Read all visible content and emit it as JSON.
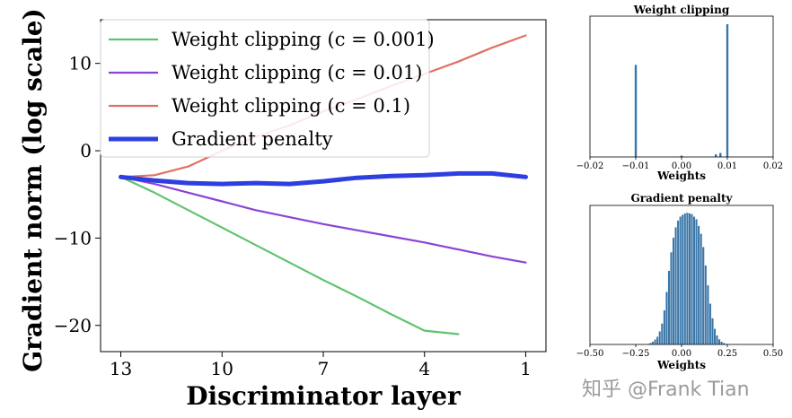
{
  "chart_data": [
    {
      "type": "line",
      "xlabel": "Discriminator layer",
      "ylabel": "Gradient norm (log scale)",
      "x_ticks": [
        13,
        10,
        7,
        4,
        1
      ],
      "x_tick_labels": [
        "13",
        "10",
        "7",
        "4",
        "1"
      ],
      "y_ticks": [
        10,
        0,
        -10,
        -20
      ],
      "y_tick_labels": [
        "10",
        "0",
        "−10",
        "−20"
      ],
      "xlim": [
        13.6,
        0.4
      ],
      "ylim": [
        -23,
        15
      ],
      "x_reversed": true,
      "grid": false,
      "legend_position": "top-left",
      "series": [
        {
          "name": "Weight clipping (c = 0.001)",
          "color": "#5fc36d",
          "x": [
            13,
            12,
            11,
            10,
            9,
            8,
            7,
            6,
            5,
            4,
            3
          ],
          "y": [
            -3,
            -4.8,
            -6.8,
            -8.8,
            -10.8,
            -12.8,
            -14.8,
            -16.7,
            -18.7,
            -20.6,
            -21
          ]
        },
        {
          "name": "Weight clipping (c = 0.01)",
          "color": "#8b43d6",
          "x": [
            13,
            12,
            11,
            10,
            9,
            8,
            7,
            6,
            5,
            4,
            3,
            2,
            1
          ],
          "y": [
            -3,
            -3.8,
            -4.8,
            -5.8,
            -6.8,
            -7.6,
            -8.4,
            -9.1,
            -9.8,
            -10.5,
            -11.3,
            -12.1,
            -12.8
          ]
        },
        {
          "name": "Weight clipping (c = 0.1)",
          "color": "#e07163",
          "x": [
            13,
            12,
            11,
            10,
            9,
            8,
            7,
            6,
            5,
            4,
            3,
            2,
            1
          ],
          "y": [
            -3,
            -2.8,
            -1.8,
            0,
            1.6,
            2.9,
            4.5,
            5.9,
            7.4,
            8.8,
            10.2,
            11.8,
            13.2
          ]
        },
        {
          "name": "Gradient penalty",
          "color": "#2e3fe0",
          "x": [
            13,
            12,
            11,
            10,
            9,
            8,
            7,
            6,
            5,
            4,
            3,
            2,
            1
          ],
          "y": [
            -3,
            -3.4,
            -3.7,
            -3.8,
            -3.7,
            -3.8,
            -3.5,
            -3.1,
            -2.9,
            -2.8,
            -2.6,
            -2.6,
            -3.0
          ]
        }
      ]
    },
    {
      "type": "bar",
      "title": "Weight clipping",
      "xlabel": "Weights",
      "xlim": [
        -0.02,
        0.02
      ],
      "x_ticks": [
        -0.02,
        -0.01,
        0,
        0.01,
        0.02
      ],
      "x_tick_labels": [
        "−0.02",
        "−0.01",
        "0.00",
        "0.01",
        "0.02"
      ],
      "color": "#3a76a8",
      "x": [
        -0.01,
        0.0,
        0.0075,
        0.0085,
        0.01
      ],
      "values": [
        0.68,
        0.01,
        0.02,
        0.03,
        0.98
      ]
    },
    {
      "type": "bar",
      "title": "Gradient penalty",
      "xlabel": "Weights",
      "xlim": [
        -0.5,
        0.5
      ],
      "x_ticks": [
        -0.5,
        -0.25,
        0,
        0.25,
        0.5
      ],
      "x_tick_labels": [
        "−0.50",
        "−0.25",
        "0.00",
        "0.25",
        "0.50"
      ],
      "color": "#3a76a8",
      "bin_width": 0.0125,
      "bin_start": -0.2,
      "values": [
        0.003,
        0.006,
        0.012,
        0.022,
        0.038,
        0.06,
        0.1,
        0.16,
        0.26,
        0.4,
        0.56,
        0.7,
        0.81,
        0.89,
        0.94,
        0.97,
        0.985,
        0.995,
        1.0,
        0.995,
        0.99,
        0.97,
        0.95,
        0.9,
        0.84,
        0.74,
        0.6,
        0.45,
        0.31,
        0.2,
        0.12,
        0.07,
        0.04,
        0.022,
        0.012,
        0.006
      ]
    }
  ],
  "watermark": "知乎 @Frank Tian"
}
